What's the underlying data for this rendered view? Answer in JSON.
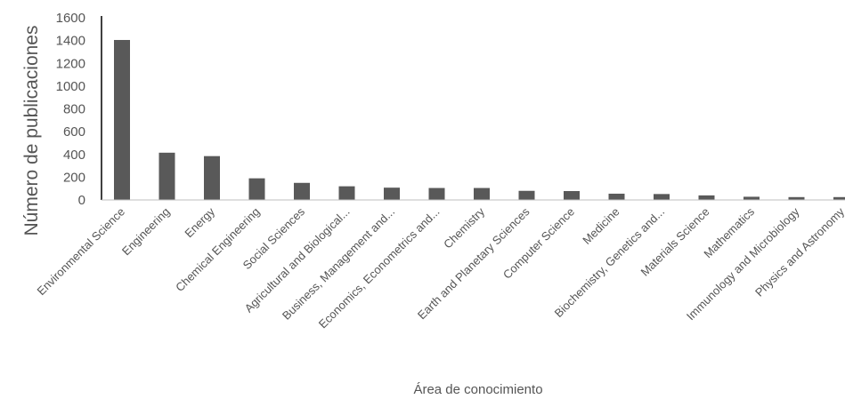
{
  "chart_data": {
    "type": "bar",
    "title": "",
    "xlabel": "Área de conocimiento",
    "ylabel": "Número de publicaciones",
    "ylim": [
      0,
      1600
    ],
    "yticks": [
      0,
      200,
      400,
      600,
      800,
      1000,
      1200,
      1400,
      1600
    ],
    "grid": false,
    "legend": "none",
    "bar_color": "#595959",
    "categories": [
      "Environmental Science",
      "Engineering",
      "Energy",
      "Chemical Engineering",
      "Social Sciences",
      "Agricultural and Biological...",
      "Business, Management and...",
      "Economics, Econometrics and...",
      "Chemistry",
      "Earth and Planetary Sciences",
      "Computer Science",
      "Medicine",
      "Biochemistry, Genetics and...",
      "Materials Science",
      "Mathematics",
      "Immunology and Microbiology",
      "Physics and Astronomy"
    ],
    "values": [
      1405,
      415,
      385,
      190,
      150,
      120,
      108,
      105,
      105,
      80,
      78,
      55,
      52,
      40,
      28,
      25,
      25
    ]
  }
}
